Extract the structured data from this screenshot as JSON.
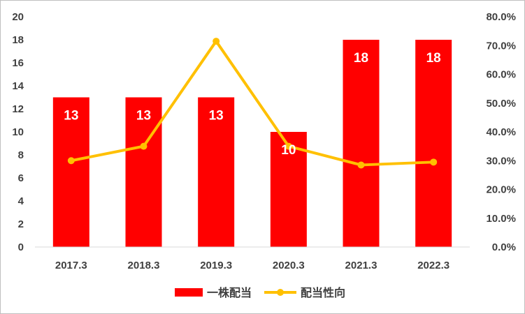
{
  "chart_data": {
    "type": "bar",
    "categories": [
      "2017.3",
      "2018.3",
      "2019.3",
      "2020.3",
      "2021.3",
      "2022.3"
    ],
    "series": [
      {
        "name": "一株配当",
        "type": "bar",
        "axis": "left",
        "values": [
          13,
          13,
          13,
          10,
          18,
          18
        ],
        "color": "#ff0000",
        "data_labels": [
          "13",
          "13",
          "13",
          "10",
          "18",
          "18"
        ]
      },
      {
        "name": "配当性向",
        "type": "line",
        "axis": "right",
        "values": [
          30.0,
          35.0,
          71.5,
          35.0,
          28.5,
          29.5
        ],
        "color": "#ffc000"
      }
    ],
    "y_left": {
      "lim": [
        0,
        20
      ],
      "ticks": [
        "0",
        "2",
        "4",
        "6",
        "8",
        "10",
        "12",
        "14",
        "16",
        "18",
        "20"
      ]
    },
    "y_right": {
      "lim": [
        0,
        80
      ],
      "ticks": [
        "0.0%",
        "10.0%",
        "20.0%",
        "30.0%",
        "40.0%",
        "50.0%",
        "60.0%",
        "70.0%",
        "80.0%"
      ]
    },
    "grid": false,
    "legend_position": "bottom"
  }
}
